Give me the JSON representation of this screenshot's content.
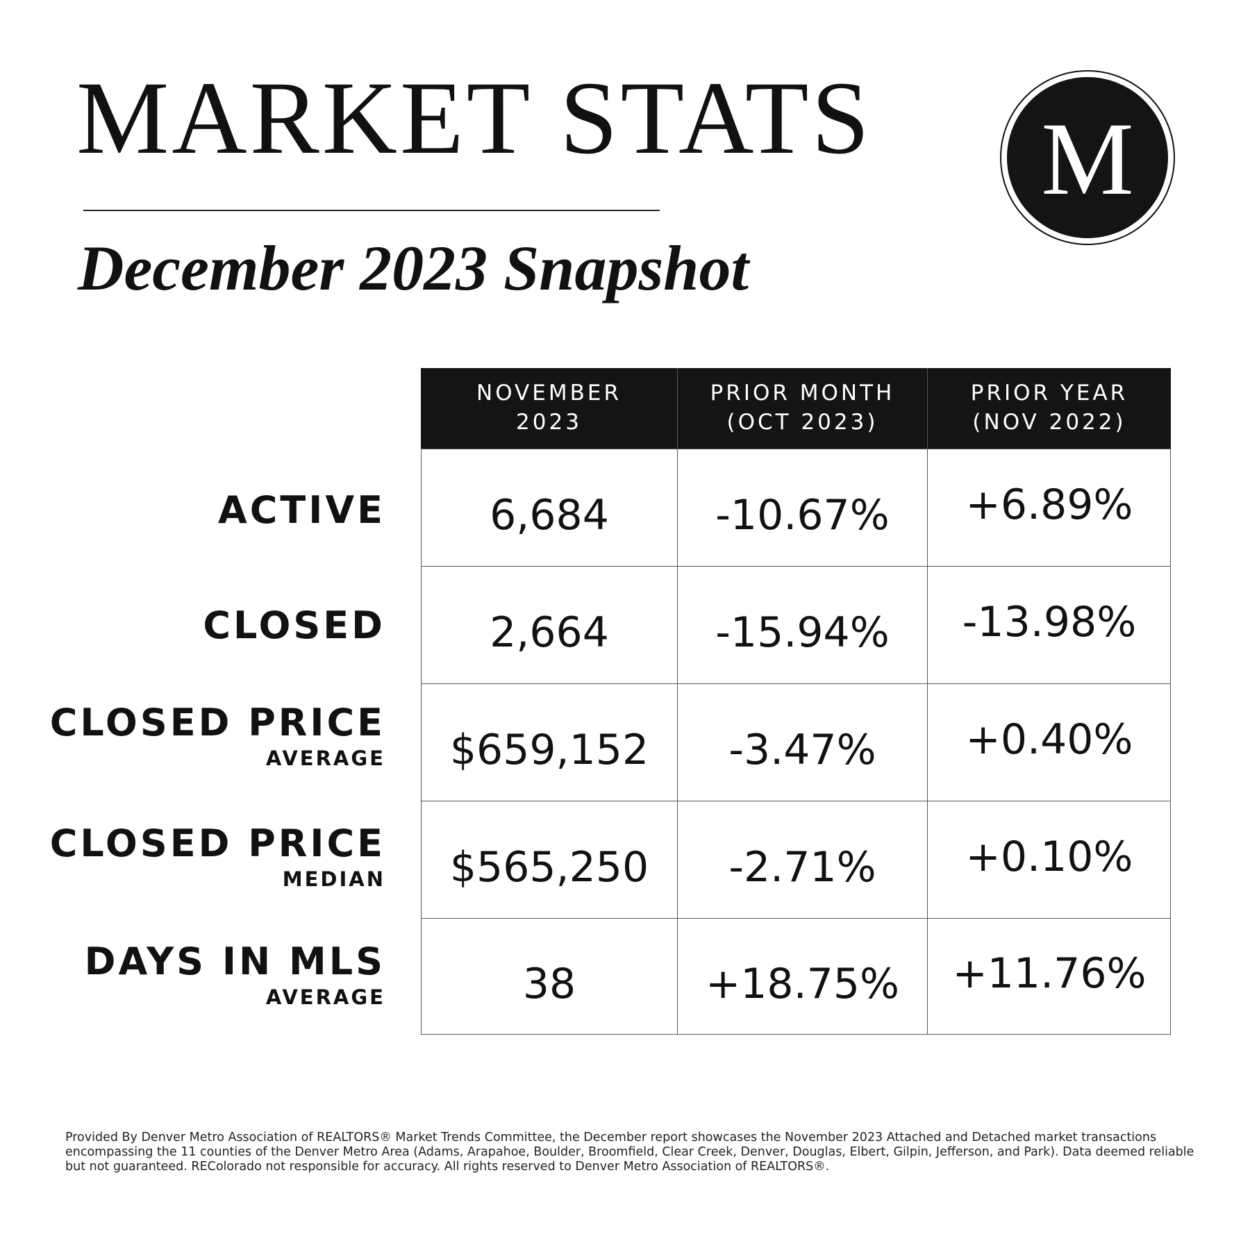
{
  "header": {
    "title": "MARKET STATS",
    "subtitle": "December 2023 Snapshot",
    "logo_letter": "M"
  },
  "table": {
    "columns": [
      {
        "line1": "NOVEMBER",
        "line2": "2023"
      },
      {
        "line1": "PRIOR MONTH",
        "line2": "(OCT 2023)"
      },
      {
        "line1": "PRIOR YEAR",
        "line2": "(NOV 2022)"
      }
    ],
    "rows": [
      {
        "label": "ACTIVE",
        "sublabel": "",
        "values": [
          "6,684",
          "-10.67%",
          "+6.89%"
        ]
      },
      {
        "label": "CLOSED",
        "sublabel": "",
        "values": [
          "2,664",
          "-15.94%",
          "-13.98%"
        ]
      },
      {
        "label": "CLOSED PRICE",
        "sublabel": "AVERAGE",
        "values": [
          "$659,152",
          "-3.47%",
          "+0.40%"
        ]
      },
      {
        "label": "CLOSED PRICE",
        "sublabel": "MEDIAN",
        "values": [
          "$565,250",
          "-2.71%",
          "+0.10%"
        ]
      },
      {
        "label": "DAYS IN MLS",
        "sublabel": "AVERAGE",
        "values": [
          "38",
          "+18.75%",
          "+11.76%"
        ]
      }
    ]
  },
  "footnote": "Provided By Denver Metro Association of REALTORS® Market Trends Committee, the December report showcases the November 2023 Attached and Detached market transactions encompassing the 11 counties of the Denver Metro Area (Adams, Arapahoe, Boulder, Broomfield, Clear Creek, Denver, Douglas, Elbert, Gilpin, Jefferson, and Park). Data deemed reliable but not guaranteed. REColorado not responsible for accuracy. All rights reserved to Denver Metro Association of REALTORS®.",
  "colors": {
    "ink": "#111111",
    "header_bg": "#141414",
    "background": "#ffffff"
  }
}
